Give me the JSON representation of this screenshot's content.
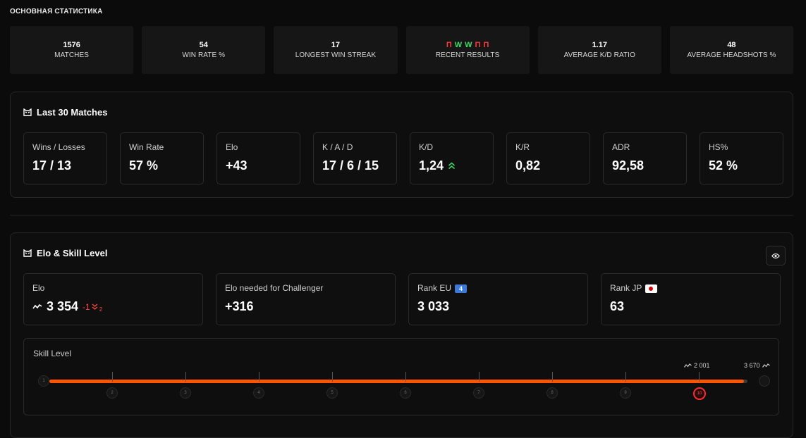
{
  "main_stats": {
    "title": "ОСНОВНАЯ СТАТИСТИКА",
    "cards": [
      {
        "value": "1576",
        "label": "MATCHES"
      },
      {
        "value": "54",
        "label": "WIN RATE %"
      },
      {
        "value": "17",
        "label": "LONGEST WIN STREAK"
      },
      {
        "value": "",
        "label": "RECENT RESULTS"
      },
      {
        "value": "1.17",
        "label": "AVERAGE K/D RATIO"
      },
      {
        "value": "48",
        "label": "AVERAGE HEADSHOTS %"
      }
    ],
    "recent_results": [
      "П",
      "W",
      "W",
      "П",
      "П"
    ]
  },
  "last30": {
    "title": "Last 30 Matches",
    "cards": [
      {
        "label": "Wins / Losses",
        "value": "17 / 13"
      },
      {
        "label": "Win Rate",
        "value": "57 %"
      },
      {
        "label": "Elo",
        "value": "+43"
      },
      {
        "label": "K / A / D",
        "value": "17 / 6 / 15"
      },
      {
        "label": "K/D",
        "value": "1,24"
      },
      {
        "label": "K/R",
        "value": "0,82"
      },
      {
        "label": "ADR",
        "value": "92,58"
      },
      {
        "label": "HS%",
        "value": "52 %"
      }
    ],
    "kd_trend_icon": "double-chevron-up-icon",
    "kd_trend_color": "#3ddc68"
  },
  "elo_skill": {
    "title": "Elo & Skill Level",
    "elo": {
      "label": "Elo",
      "value": "3 354",
      "delta": "-1",
      "delta_sub": "2"
    },
    "challenger": {
      "label": "Elo needed for Challenger",
      "value": "+316"
    },
    "rank_eu": {
      "label": "Rank EU",
      "value": "3 033",
      "flag": "4"
    },
    "rank_jp": {
      "label": "Rank JP",
      "value": "63"
    },
    "skill": {
      "label": "Skill Level",
      "levels": [
        "1",
        "2",
        "3",
        "4",
        "5",
        "6",
        "7",
        "8",
        "9",
        "10"
      ],
      "current_level": 10,
      "level10_elo": "2 001",
      "max_elo": "3 670",
      "progress_fraction": 0.995
    }
  },
  "colors": {
    "accent": "#ff5500",
    "loss": "#ff3b3b",
    "win": "#3ddc68",
    "level_active": "#ff2d2d"
  }
}
